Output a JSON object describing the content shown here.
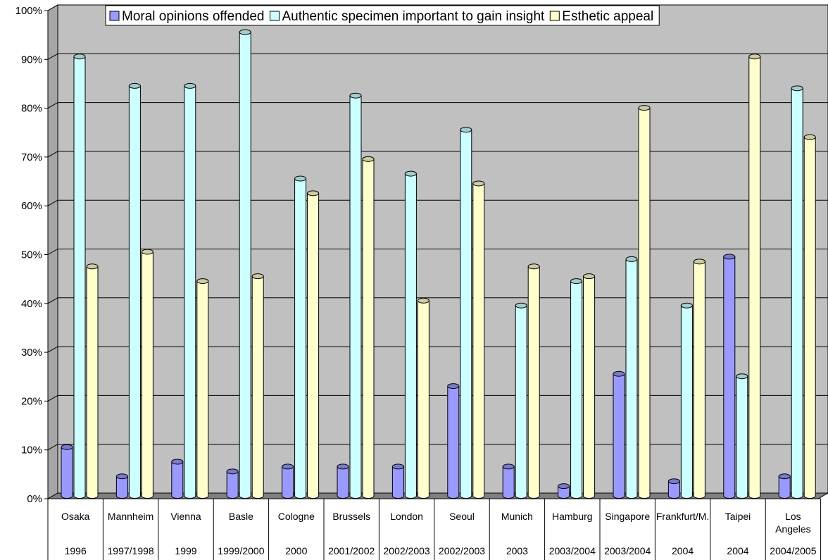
{
  "chart_data": {
    "type": "bar",
    "title": "",
    "xlabel": "",
    "ylabel": "",
    "ylim": [
      0,
      100
    ],
    "yticks": [
      "0%",
      "10%",
      "20%",
      "30%",
      "40%",
      "50%",
      "60%",
      "70%",
      "80%",
      "90%",
      "100%"
    ],
    "grid": true,
    "legend_position": "top",
    "categories": [
      {
        "city": "Osaka",
        "year": "1996"
      },
      {
        "city": "Mannheim",
        "year": "1997/1998"
      },
      {
        "city": "Vienna",
        "year": "1999"
      },
      {
        "city": "Basle",
        "year": "1999/2000"
      },
      {
        "city": "Cologne",
        "year": "2000"
      },
      {
        "city": "Brussels",
        "year": "2001/2002"
      },
      {
        "city": "London",
        "year": "2002/2003"
      },
      {
        "city": "Seoul",
        "year": "2002/2003"
      },
      {
        "city": "Munich",
        "year": "2003"
      },
      {
        "city": "Hamburg",
        "year": "2003/2004"
      },
      {
        "city": "Singapore",
        "year": "2003/2004"
      },
      {
        "city": "Frankfurt/M.",
        "year": "2004"
      },
      {
        "city": "Taipei",
        "year": "2004"
      },
      {
        "city": "Los Angeles",
        "year": "2004/2005"
      }
    ],
    "series": [
      {
        "name": "Moral opinions offended",
        "color": "#9999ff",
        "values": [
          10,
          4,
          7,
          5,
          6,
          6,
          6,
          22.5,
          6,
          2,
          25,
          3,
          49,
          4
        ]
      },
      {
        "name": "Authentic specimen important to gain insight",
        "color": "#ccffff",
        "values": [
          90,
          84,
          84,
          95,
          65,
          82,
          66,
          75,
          39,
          44,
          48.5,
          39,
          24.5,
          83.5
        ]
      },
      {
        "name": "Esthetic appeal",
        "color": "#ffffcc",
        "values": [
          47,
          50,
          44,
          45,
          62,
          69,
          40,
          64,
          47,
          45,
          79.5,
          48,
          90,
          73.5
        ]
      }
    ]
  }
}
